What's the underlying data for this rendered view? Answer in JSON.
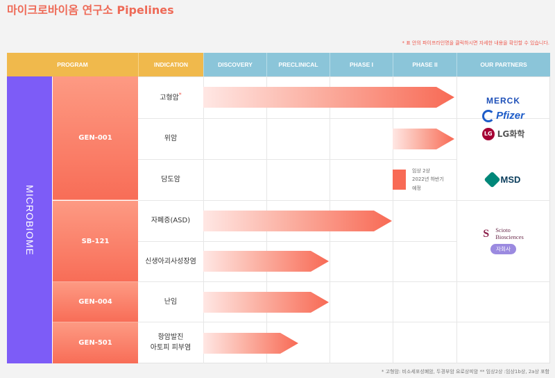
{
  "page": {
    "title": "마이크로바이옴 연구소 Pipelines",
    "note": "* 표 안의 파이프라인명을 클릭하시면 자세한 내용을 확인할 수 있습니다.",
    "footnote": "* 고형암: 비소세포성폐암, 두경부암 요로상피암 ** 임상2상 :임상1b상, 2a상 포함"
  },
  "headers": {
    "program": "PROGRAM",
    "indication": "INDICATION",
    "discovery": "DISCOVERY",
    "preclinical": "PRECLINICAL",
    "phase1": "PHASE I",
    "phase2": "PHASE II",
    "partners": "OUR PARTNERS"
  },
  "category": "MICROBIOME",
  "programs": [
    "GEN-001",
    "SB-121",
    "GEN-004",
    "GEN-501"
  ],
  "indications": {
    "r1": "고형암",
    "r1_mark": "*",
    "r2": "위암",
    "r3": "담도암",
    "r4": "자폐증(ASD)",
    "r5": "신생아괴사성장염",
    "r6": "난임",
    "r7a": "항암발진",
    "r7b": "아토피 피부염"
  },
  "phase_note": [
    "임상 2상",
    "2022년 하반기",
    "예정"
  ],
  "pipeline_progress": [
    {
      "indication": "고형암",
      "stage": "PHASE II",
      "fraction": 1.0
    },
    {
      "indication": "위암",
      "stage": "PHASE II",
      "fraction": 1.0
    },
    {
      "indication": "담도암",
      "stage": "PHASE II",
      "fraction": 0.2
    },
    {
      "indication": "자폐증(ASD)",
      "stage": "PHASE I",
      "fraction": 1.0
    },
    {
      "indication": "신생아괴사성장염",
      "stage": "PRECLINICAL",
      "fraction": 1.0
    },
    {
      "indication": "난임",
      "stage": "PRECLINICAL",
      "fraction": 1.0
    },
    {
      "indication": "항암발진 아토피 피부염",
      "stage": "PRECLINICAL",
      "fraction": 0.5
    }
  ],
  "partners": {
    "merck": "MERCK",
    "pfizer": "Pfizer",
    "lg": "LG화학",
    "lg_mark": "LG",
    "msd": "MSD",
    "scioto_1": "Scioto",
    "scioto_2": "Biosciences",
    "scioto_mark": "S",
    "subsidiary": "자회사"
  },
  "colors": {
    "accent": "#ee6a57",
    "header_orange": "#f0b94c",
    "header_blue": "#8bc5d9",
    "category_purple": "#7d5cf7",
    "program_red": "#f86d57"
  }
}
